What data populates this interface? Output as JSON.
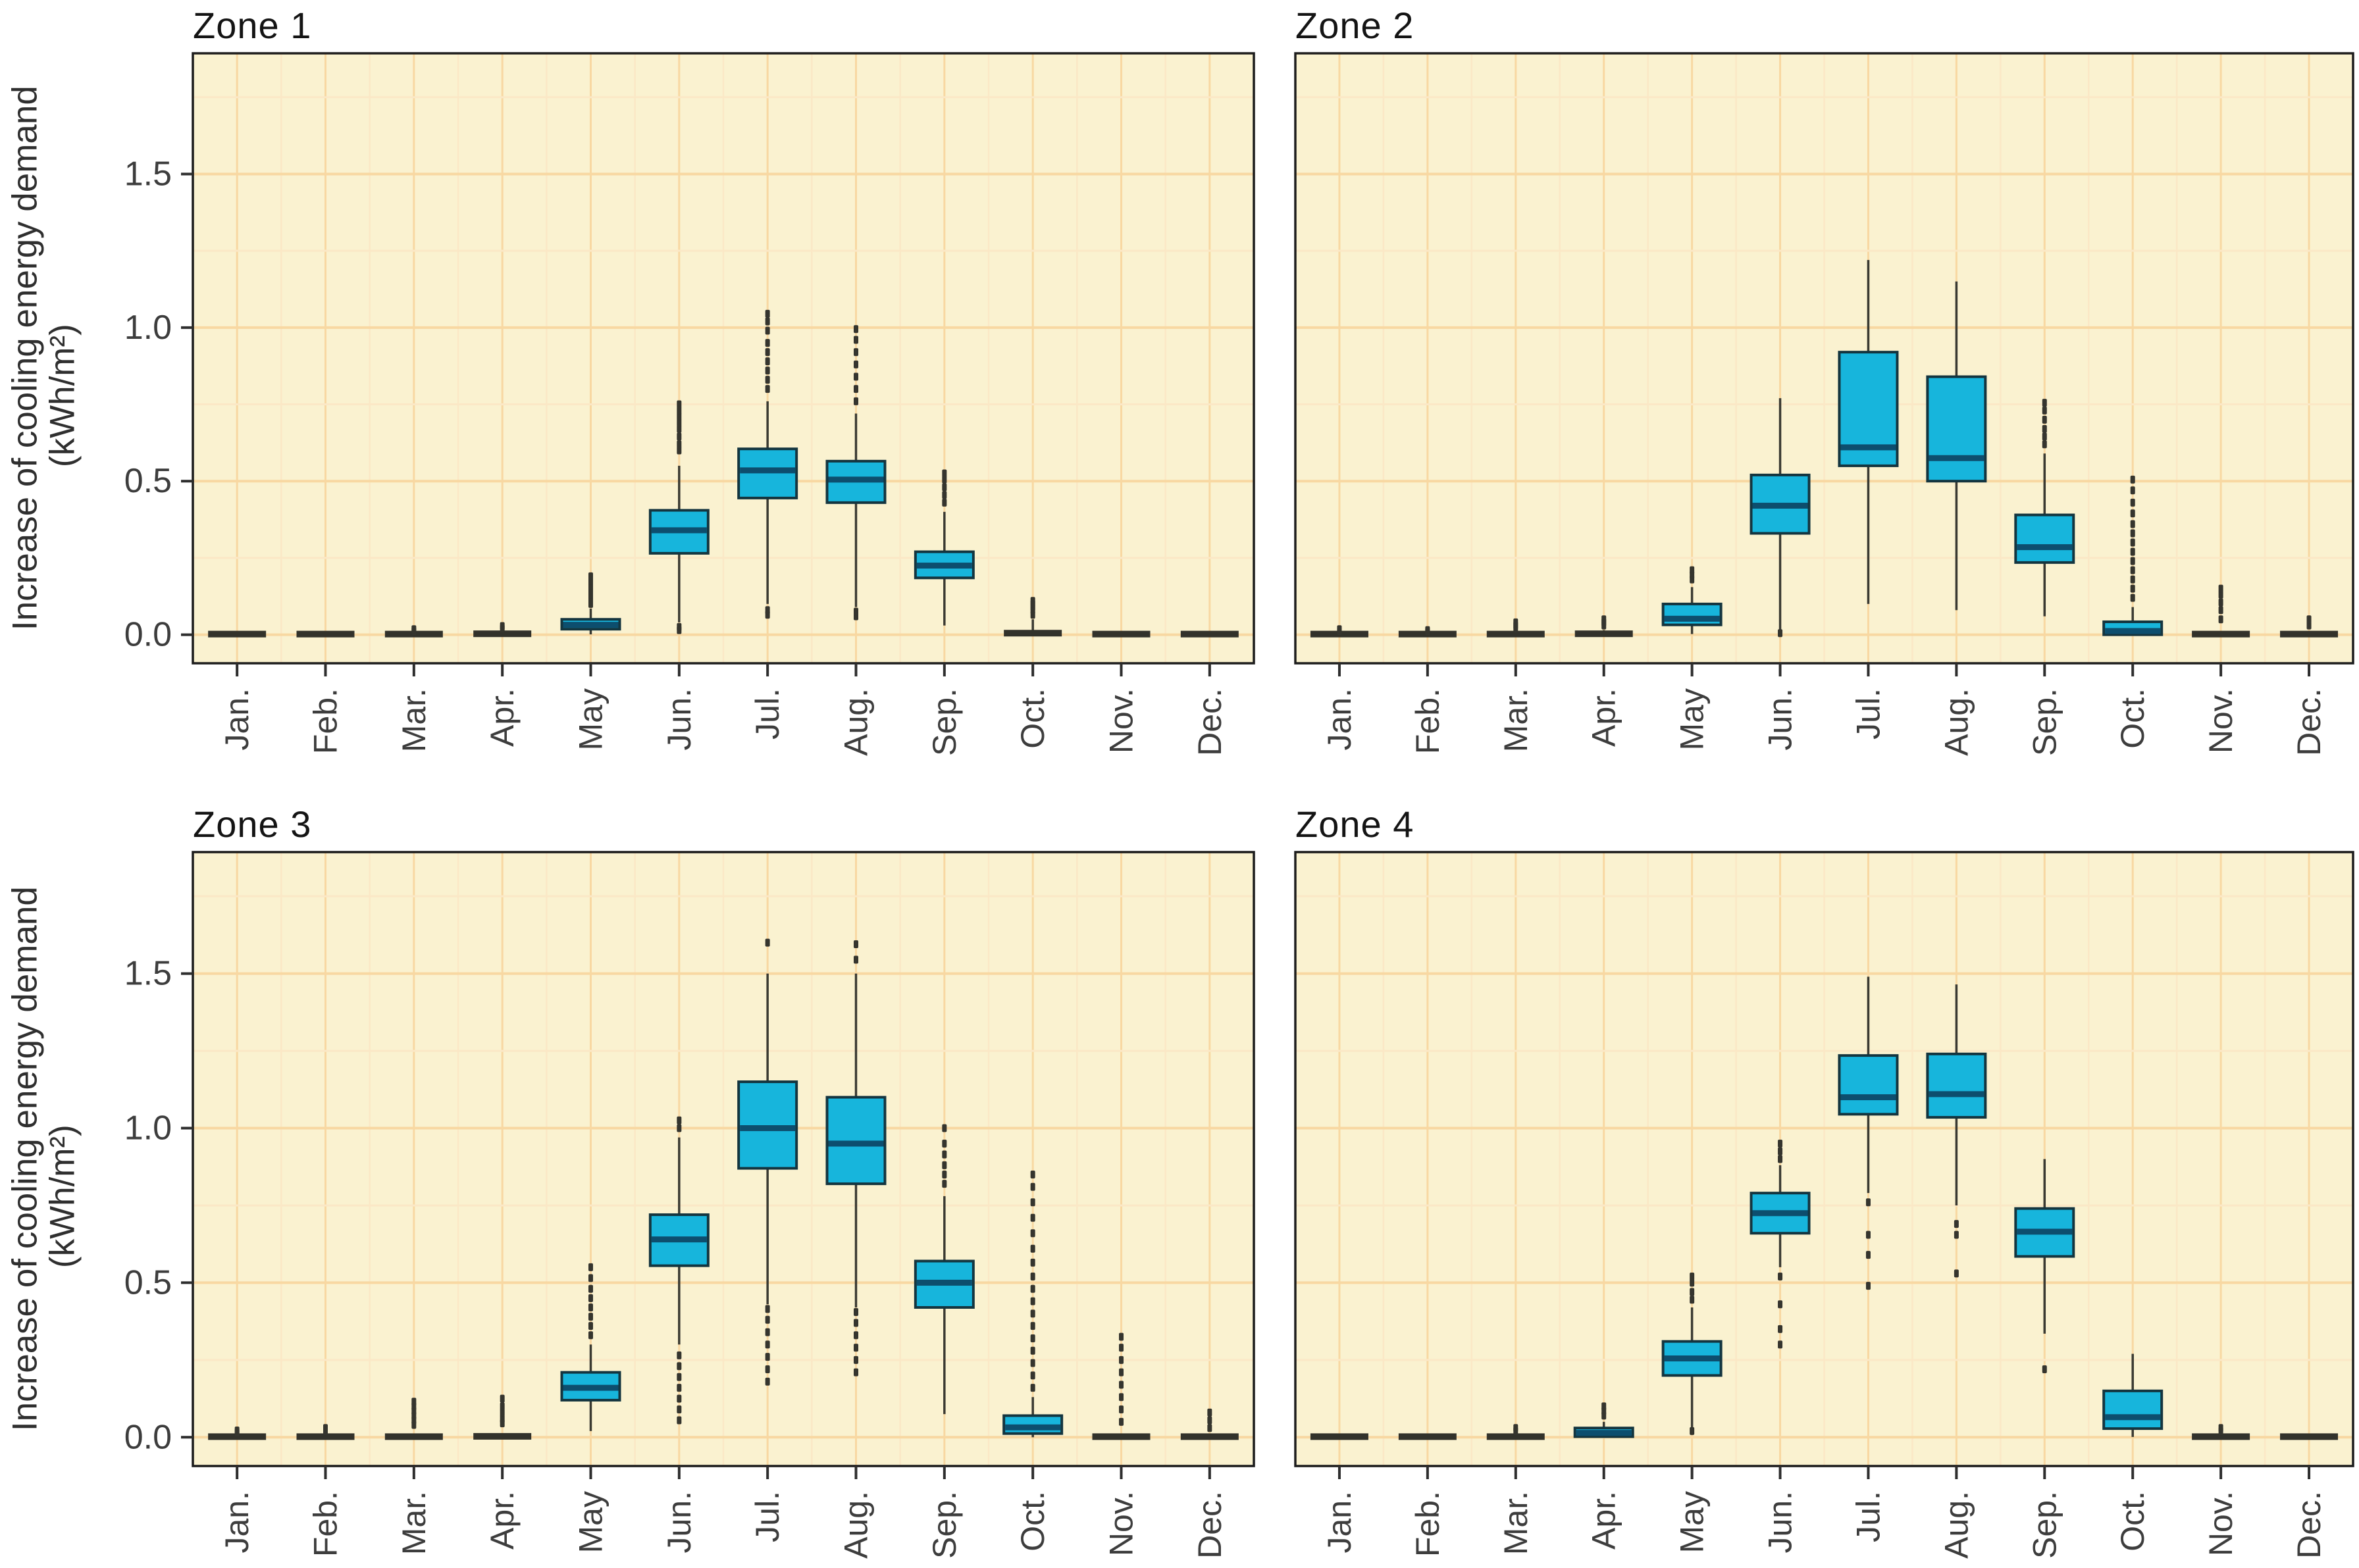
{
  "figure": {
    "y_axis_title_line1": "Increase of cooling energy demand",
    "y_axis_title_line2": "(kWh/m²)",
    "months": [
      "Jan.",
      "Feb.",
      "Mar.",
      "Apr.",
      "May",
      "Jun.",
      "Jul.",
      "Aug.",
      "Sep.",
      "Oct.",
      "Nov.",
      "Dec."
    ],
    "y_tick_values": [
      0.0,
      0.5,
      1.0,
      1.5
    ],
    "y_tick_labels": [
      "0.0",
      "0.5",
      "1.0",
      "1.5"
    ],
    "colors": {
      "panel_bg": "#faf2d0",
      "grid_major": "#f8d8a2",
      "grid_minor": "#fbe8c6",
      "panel_border": "#1c1c1c",
      "box_fill": "#17b5dc",
      "box_border": "#14353f",
      "median": "#0d4e6e",
      "whisker": "#3a3a32",
      "outlier": "#35352e",
      "flat_bar": "#32322b",
      "tick": "#2e2e2e",
      "text": "#3d3d3d",
      "title": "#141414"
    }
  },
  "chart_data": [
    {
      "type": "boxplot",
      "title": "Zone 1",
      "xlabel": "",
      "ylabel": "Increase of cooling energy demand (kWh/m²)",
      "ylim": [
        -0.09,
        1.89
      ],
      "grid": true,
      "categories": [
        "Jan.",
        "Feb.",
        "Mar.",
        "Apr.",
        "May",
        "Jun.",
        "Jul.",
        "Aug.",
        "Sep.",
        "Oct.",
        "Nov.",
        "Dec."
      ],
      "boxes": [
        {
          "month": "Jan.",
          "q1": 0,
          "median": 0.002,
          "q3": 0.005,
          "whisker_low": 0,
          "whisker_high": 0.005,
          "outliers_high": [],
          "outliers_low": []
        },
        {
          "month": "Feb.",
          "q1": 0,
          "median": 0.002,
          "q3": 0.005,
          "whisker_low": 0,
          "whisker_high": 0.005,
          "outliers_high": [],
          "outliers_low": []
        },
        {
          "month": "Mar.",
          "q1": 0,
          "median": 0.002,
          "q3": 0.005,
          "whisker_low": 0,
          "whisker_high": 0.008,
          "outliers_high": [
            0.012,
            0.018
          ],
          "outliers_low": []
        },
        {
          "month": "Apr.",
          "q1": 0,
          "median": 0.003,
          "q3": 0.008,
          "whisker_low": 0,
          "whisker_high": 0.012,
          "outliers_high": [
            0.02,
            0.028
          ],
          "outliers_low": []
        },
        {
          "month": "May",
          "q1": 0.018,
          "median": 0.032,
          "q3": 0.05,
          "whisker_low": 0.001,
          "whisker_high": 0.085,
          "outliers_high": [
            0.1,
            0.115,
            0.13,
            0.145,
            0.16,
            0.175,
            0.19
          ],
          "outliers_low": []
        },
        {
          "month": "Jun.",
          "q1": 0.265,
          "median": 0.34,
          "q3": 0.405,
          "whisker_low": 0.04,
          "whisker_high": 0.55,
          "outliers_high": [
            0.6,
            0.62,
            0.645,
            0.67,
            0.69,
            0.71,
            0.73,
            0.75
          ],
          "outliers_low": [
            0.015,
            0.025
          ]
        },
        {
          "month": "Jul.",
          "q1": 0.445,
          "median": 0.535,
          "q3": 0.605,
          "whisker_low": 0.1,
          "whisker_high": 0.76,
          "outliers_high": [
            0.8,
            0.83,
            0.86,
            0.89,
            0.92,
            0.95,
            0.99,
            1.02,
            1.045
          ],
          "outliers_low": [
            0.065,
            0.08
          ]
        },
        {
          "month": "Aug.",
          "q1": 0.43,
          "median": 0.505,
          "q3": 0.565,
          "whisker_low": 0.09,
          "whisker_high": 0.72,
          "outliers_high": [
            0.76,
            0.8,
            0.84,
            0.88,
            0.92,
            0.96,
            0.995
          ],
          "outliers_low": [
            0.06,
            0.075
          ]
        },
        {
          "month": "Sep.",
          "q1": 0.185,
          "median": 0.225,
          "q3": 0.27,
          "whisker_low": 0.03,
          "whisker_high": 0.4,
          "outliers_high": [
            0.43,
            0.455,
            0.48,
            0.505,
            0.525
          ],
          "outliers_low": []
        },
        {
          "month": "Oct.",
          "q1": 0,
          "median": 0.005,
          "q3": 0.018,
          "whisker_low": 0,
          "whisker_high": 0.05,
          "outliers_high": [
            0.065,
            0.08,
            0.09,
            0.1,
            0.11
          ],
          "outliers_low": []
        },
        {
          "month": "Nov.",
          "q1": 0,
          "median": 0.002,
          "q3": 0.005,
          "whisker_low": 0,
          "whisker_high": 0.005,
          "outliers_high": [],
          "outliers_low": []
        },
        {
          "month": "Dec.",
          "q1": 0,
          "median": 0.002,
          "q3": 0.005,
          "whisker_low": 0,
          "whisker_high": 0.005,
          "outliers_high": [],
          "outliers_low": []
        }
      ]
    },
    {
      "type": "boxplot",
      "title": "Zone 2",
      "xlabel": "",
      "ylabel": "Increase of cooling energy demand (kWh/m²)",
      "ylim": [
        -0.09,
        1.89
      ],
      "grid": true,
      "categories": [
        "Jan.",
        "Feb.",
        "Mar.",
        "Apr.",
        "May",
        "Jun.",
        "Jul.",
        "Aug.",
        "Sep.",
        "Oct.",
        "Nov.",
        "Dec."
      ],
      "boxes": [
        {
          "month": "Jan.",
          "q1": 0,
          "median": 0.002,
          "q3": 0.005,
          "whisker_low": 0,
          "whisker_high": 0.005,
          "outliers_high": [
            0.012,
            0.018
          ],
          "outliers_low": []
        },
        {
          "month": "Feb.",
          "q1": 0,
          "median": 0.002,
          "q3": 0.005,
          "whisker_low": 0,
          "whisker_high": 0.005,
          "outliers_high": [
            0.01,
            0.015
          ],
          "outliers_low": []
        },
        {
          "month": "Mar.",
          "q1": 0,
          "median": 0.002,
          "q3": 0.005,
          "whisker_low": 0,
          "whisker_high": 0.008,
          "outliers_high": [
            0.02,
            0.03,
            0.04
          ],
          "outliers_low": []
        },
        {
          "month": "Apr.",
          "q1": 0,
          "median": 0.003,
          "q3": 0.01,
          "whisker_low": 0,
          "whisker_high": 0.015,
          "outliers_high": [
            0.03,
            0.04,
            0.05
          ],
          "outliers_low": []
        },
        {
          "month": "May",
          "q1": 0.032,
          "median": 0.052,
          "q3": 0.1,
          "whisker_low": 0.002,
          "whisker_high": 0.155,
          "outliers_high": [
            0.18,
            0.195,
            0.21
          ],
          "outliers_low": []
        },
        {
          "month": "Jun.",
          "q1": 0.33,
          "median": 0.42,
          "q3": 0.52,
          "whisker_low": 0.012,
          "whisker_high": 0.77,
          "outliers_high": [],
          "outliers_low": [
            0.005
          ]
        },
        {
          "month": "Jul.",
          "q1": 0.55,
          "median": 0.61,
          "q3": 0.92,
          "whisker_low": 0.1,
          "whisker_high": 1.22,
          "outliers_high": [],
          "outliers_low": []
        },
        {
          "month": "Aug.",
          "q1": 0.5,
          "median": 0.575,
          "q3": 0.84,
          "whisker_low": 0.08,
          "whisker_high": 1.15,
          "outliers_high": [],
          "outliers_low": []
        },
        {
          "month": "Sep.",
          "q1": 0.235,
          "median": 0.285,
          "q3": 0.39,
          "whisker_low": 0.06,
          "whisker_high": 0.59,
          "outliers_high": [
            0.62,
            0.645,
            0.67,
            0.7,
            0.73,
            0.755
          ],
          "outliers_low": []
        },
        {
          "month": "Oct.",
          "q1": 0,
          "median": 0.012,
          "q3": 0.042,
          "whisker_low": 0,
          "whisker_high": 0.09,
          "outliers_high": [
            0.12,
            0.15,
            0.18,
            0.21,
            0.24,
            0.27,
            0.3,
            0.33,
            0.36,
            0.395,
            0.43,
            0.47,
            0.505
          ],
          "outliers_low": []
        },
        {
          "month": "Nov.",
          "q1": 0,
          "median": 0.002,
          "q3": 0.005,
          "whisker_low": 0,
          "whisker_high": 0.008,
          "outliers_high": [
            0.05,
            0.08,
            0.105,
            0.13,
            0.15
          ],
          "outliers_low": []
        },
        {
          "month": "Dec.",
          "q1": 0,
          "median": 0.002,
          "q3": 0.005,
          "whisker_low": 0,
          "whisker_high": 0.005,
          "outliers_high": [
            0.03,
            0.05
          ],
          "outliers_low": []
        }
      ]
    },
    {
      "type": "boxplot",
      "title": "Zone 3",
      "xlabel": "",
      "ylabel": "Increase of cooling energy demand (kWh/m²)",
      "ylim": [
        -0.09,
        1.89
      ],
      "grid": true,
      "categories": [
        "Jan.",
        "Feb.",
        "Mar.",
        "Apr.",
        "May",
        "Jun.",
        "Jul.",
        "Aug.",
        "Sep.",
        "Oct.",
        "Nov.",
        "Dec."
      ],
      "boxes": [
        {
          "month": "Jan.",
          "q1": 0,
          "median": 0.002,
          "q3": 0.005,
          "whisker_low": 0,
          "whisker_high": 0.008,
          "outliers_high": [
            0.015,
            0.022
          ],
          "outliers_low": []
        },
        {
          "month": "Feb.",
          "q1": 0,
          "median": 0.002,
          "q3": 0.005,
          "whisker_low": 0,
          "whisker_high": 0.008,
          "outliers_high": [
            0.02,
            0.03
          ],
          "outliers_low": []
        },
        {
          "month": "Mar.",
          "q1": 0,
          "median": 0.002,
          "q3": 0.006,
          "whisker_low": 0,
          "whisker_high": 0.01,
          "outliers_high": [
            0.04,
            0.055,
            0.07,
            0.085,
            0.1,
            0.115
          ],
          "outliers_low": []
        },
        {
          "month": "Apr.",
          "q1": 0,
          "median": 0.003,
          "q3": 0.008,
          "whisker_low": 0,
          "whisker_high": 0.012,
          "outliers_high": [
            0.045,
            0.06,
            0.08,
            0.1,
            0.125
          ],
          "outliers_low": []
        },
        {
          "month": "May",
          "q1": 0.12,
          "median": 0.16,
          "q3": 0.21,
          "whisker_low": 0.02,
          "whisker_high": 0.3,
          "outliers_high": [
            0.33,
            0.36,
            0.39,
            0.42,
            0.45,
            0.48,
            0.515,
            0.55
          ],
          "outliers_low": []
        },
        {
          "month": "Jun.",
          "q1": 0.555,
          "median": 0.64,
          "q3": 0.72,
          "whisker_low": 0.3,
          "whisker_high": 0.97,
          "outliers_high": [
            1.0,
            1.025
          ],
          "outliers_low": [
            0.055,
            0.09,
            0.125,
            0.16,
            0.195,
            0.23,
            0.265
          ]
        },
        {
          "month": "Jul.",
          "q1": 0.87,
          "median": 1.0,
          "q3": 1.15,
          "whisker_low": 0.43,
          "whisker_high": 1.5,
          "outliers_high": [
            1.6
          ],
          "outliers_low": [
            0.18,
            0.22,
            0.26,
            0.3,
            0.34,
            0.38,
            0.415
          ]
        },
        {
          "month": "Aug.",
          "q1": 0.82,
          "median": 0.95,
          "q3": 1.1,
          "whisker_low": 0.42,
          "whisker_high": 1.5,
          "outliers_high": [
            1.545,
            1.595
          ],
          "outliers_low": [
            0.21,
            0.25,
            0.29,
            0.33,
            0.37,
            0.405
          ]
        },
        {
          "month": "Sep.",
          "q1": 0.42,
          "median": 0.5,
          "q3": 0.57,
          "whisker_low": 0.075,
          "whisker_high": 0.78,
          "outliers_high": [
            0.82,
            0.85,
            0.88,
            0.915,
            0.95,
            1.0
          ],
          "outliers_low": []
        },
        {
          "month": "Oct.",
          "q1": 0.012,
          "median": 0.032,
          "q3": 0.07,
          "whisker_low": 0,
          "whisker_high": 0.13,
          "outliers_high": [
            0.16,
            0.2,
            0.24,
            0.28,
            0.32,
            0.36,
            0.4,
            0.44,
            0.48,
            0.52,
            0.565,
            0.61,
            0.66,
            0.71,
            0.76,
            0.81,
            0.85
          ],
          "outliers_low": []
        },
        {
          "month": "Nov.",
          "q1": 0,
          "median": 0.002,
          "q3": 0.006,
          "whisker_low": 0,
          "whisker_high": 0.01,
          "outliers_high": [
            0.05,
            0.09,
            0.13,
            0.17,
            0.21,
            0.25,
            0.29,
            0.325
          ],
          "outliers_low": []
        },
        {
          "month": "Dec.",
          "q1": 0,
          "median": 0.002,
          "q3": 0.005,
          "whisker_low": 0,
          "whisker_high": 0.008,
          "outliers_high": [
            0.03,
            0.055,
            0.08
          ],
          "outliers_low": []
        }
      ]
    },
    {
      "type": "boxplot",
      "title": "Zone 4",
      "xlabel": "",
      "ylabel": "Increase of cooling energy demand (kWh/m²)",
      "ylim": [
        -0.09,
        1.89
      ],
      "grid": true,
      "categories": [
        "Jan.",
        "Feb.",
        "Mar.",
        "Apr.",
        "May",
        "Jun.",
        "Jul.",
        "Aug.",
        "Sep.",
        "Oct.",
        "Nov.",
        "Dec."
      ],
      "boxes": [
        {
          "month": "Jan.",
          "q1": 0,
          "median": 0.002,
          "q3": 0.005,
          "whisker_low": 0,
          "whisker_high": 0.005,
          "outliers_high": [],
          "outliers_low": []
        },
        {
          "month": "Feb.",
          "q1": 0,
          "median": 0.002,
          "q3": 0.005,
          "whisker_low": 0,
          "whisker_high": 0.005,
          "outliers_high": [],
          "outliers_low": []
        },
        {
          "month": "Mar.",
          "q1": 0,
          "median": 0.002,
          "q3": 0.005,
          "whisker_low": 0,
          "whisker_high": 0.008,
          "outliers_high": [
            0.02,
            0.03
          ],
          "outliers_low": []
        },
        {
          "month": "Apr.",
          "q1": 0.002,
          "median": 0.014,
          "q3": 0.03,
          "whisker_low": 0,
          "whisker_high": 0.05,
          "outliers_high": [
            0.07,
            0.085,
            0.1
          ],
          "outliers_low": []
        },
        {
          "month": "May",
          "q1": 0.2,
          "median": 0.255,
          "q3": 0.31,
          "whisker_low": 0.03,
          "whisker_high": 0.42,
          "outliers_high": [
            0.445,
            0.47,
            0.5,
            0.52
          ],
          "outliers_low": [
            0.02
          ]
        },
        {
          "month": "Jun.",
          "q1": 0.66,
          "median": 0.725,
          "q3": 0.79,
          "whisker_low": 0.55,
          "whisker_high": 0.88,
          "outliers_high": [
            0.9,
            0.925,
            0.95
          ],
          "outliers_low": [
            0.52,
            0.43,
            0.35,
            0.3
          ]
        },
        {
          "month": "Jul.",
          "q1": 1.045,
          "median": 1.1,
          "q3": 1.235,
          "whisker_low": 0.79,
          "whisker_high": 1.49,
          "outliers_high": [],
          "outliers_low": [
            0.76,
            0.655,
            0.59,
            0.49
          ]
        },
        {
          "month": "Aug.",
          "q1": 1.035,
          "median": 1.11,
          "q3": 1.24,
          "whisker_low": 0.75,
          "whisker_high": 1.465,
          "outliers_high": [],
          "outliers_low": [
            0.69,
            0.655,
            0.53
          ]
        },
        {
          "month": "Sep.",
          "q1": 0.585,
          "median": 0.665,
          "q3": 0.74,
          "whisker_low": 0.335,
          "whisker_high": 0.9,
          "outliers_high": [],
          "outliers_low": [
            0.22
          ]
        },
        {
          "month": "Oct.",
          "q1": 0.028,
          "median": 0.065,
          "q3": 0.15,
          "whisker_low": 0.001,
          "whisker_high": 0.27,
          "outliers_high": [],
          "outliers_low": []
        },
        {
          "month": "Nov.",
          "q1": 0,
          "median": 0.002,
          "q3": 0.005,
          "whisker_low": 0,
          "whisker_high": 0.008,
          "outliers_high": [
            0.02,
            0.03
          ],
          "outliers_low": []
        },
        {
          "month": "Dec.",
          "q1": 0,
          "median": 0.002,
          "q3": 0.005,
          "whisker_low": 0,
          "whisker_high": 0.005,
          "outliers_high": [],
          "outliers_low": []
        }
      ]
    }
  ]
}
